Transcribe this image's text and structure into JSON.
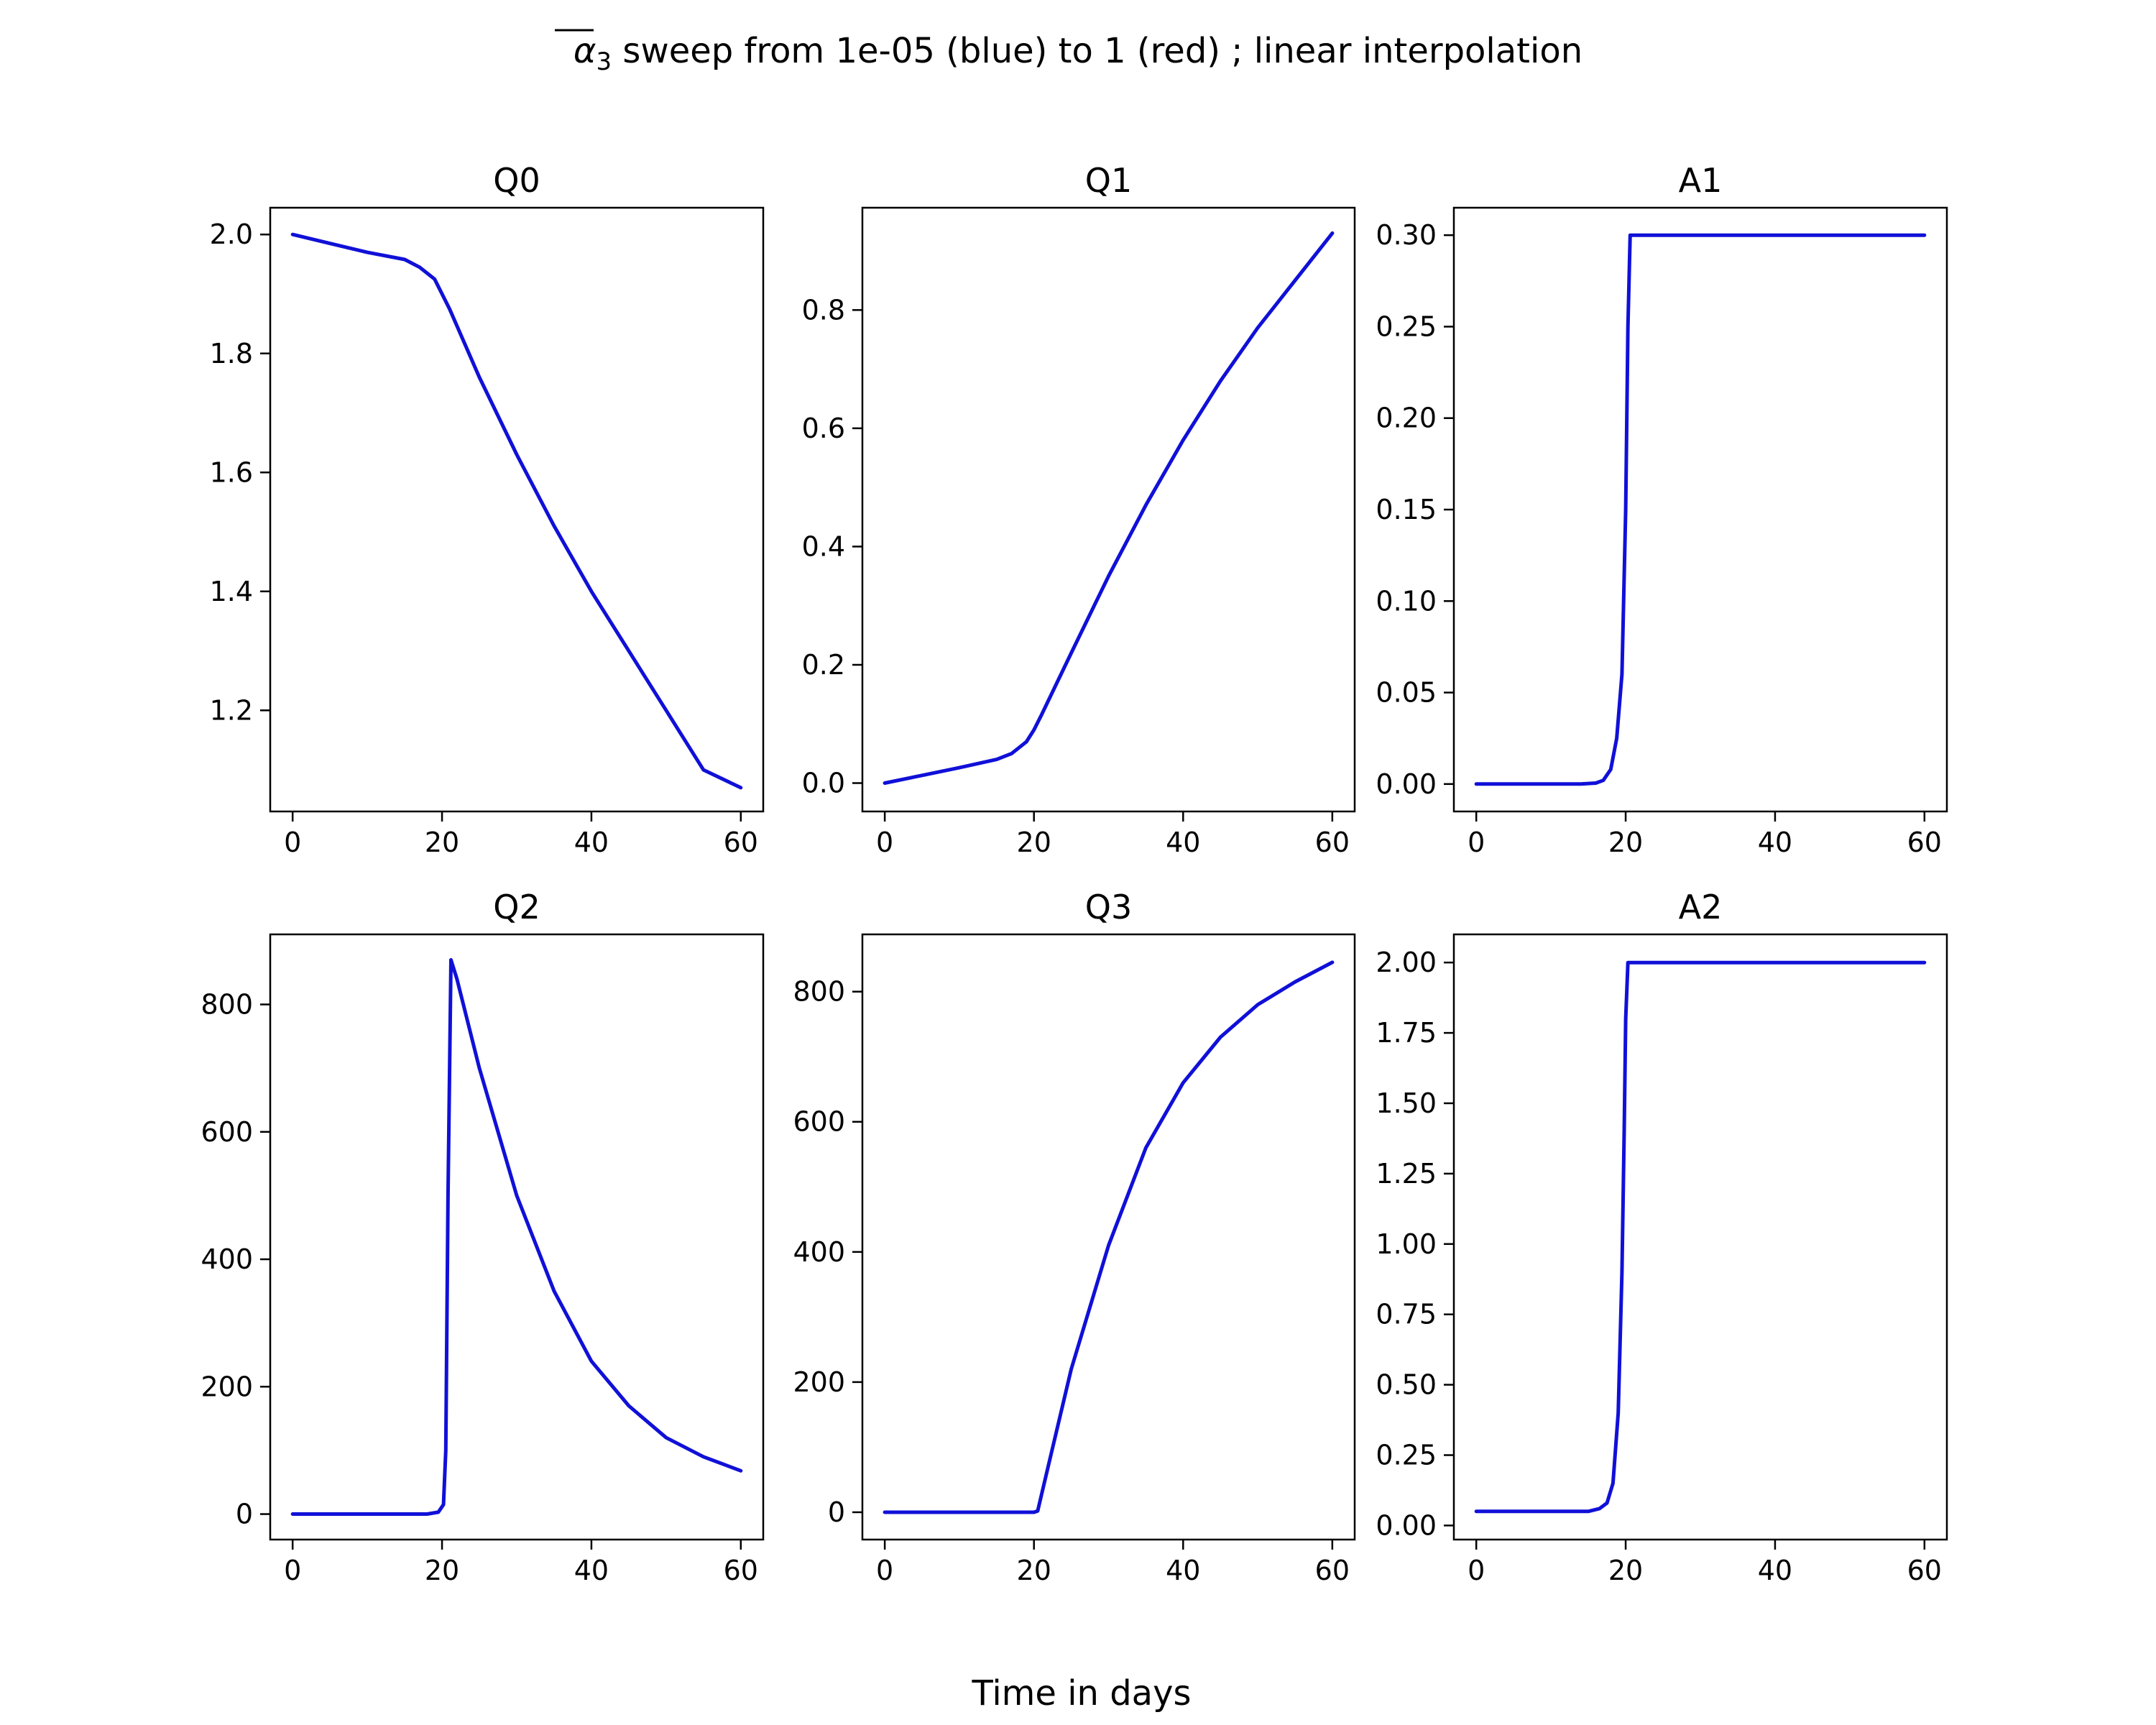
{
  "figure": {
    "suptitle_symbol": "α",
    "suptitle_subscript": "3",
    "suptitle_rest": " sweep from 1e-05 (blue) to 1 (red) ; linear interpolation",
    "xlabel": "Time in days"
  },
  "colors": {
    "line": "#1010d8",
    "axes": "#000000"
  },
  "chart_data": [
    {
      "type": "line",
      "title": "Q0",
      "xlim": [
        -3,
        63
      ],
      "ylim": [
        1.03,
        2.045
      ],
      "xticks": [
        0,
        20,
        40,
        60
      ],
      "yticks": [
        1.2,
        1.4,
        1.6,
        1.8,
        2.0
      ],
      "ytick_labels": [
        "1.2",
        "1.4",
        "1.6",
        "1.8",
        "2.0"
      ],
      "x": [
        0,
        5,
        10,
        15,
        17,
        19,
        20,
        21,
        25,
        30,
        35,
        40,
        45,
        50,
        55,
        60
      ],
      "y": [
        2.0,
        1.985,
        1.97,
        1.958,
        1.945,
        1.925,
        1.9,
        1.875,
        1.76,
        1.63,
        1.51,
        1.4,
        1.3,
        1.2,
        1.1,
        1.07
      ]
    },
    {
      "type": "line",
      "title": "Q1",
      "xlim": [
        -3,
        63
      ],
      "ylim": [
        -0.048,
        0.973
      ],
      "xticks": [
        0,
        20,
        40,
        60
      ],
      "yticks": [
        0.0,
        0.2,
        0.4,
        0.6,
        0.8
      ],
      "ytick_labels": [
        "0.0",
        "0.2",
        "0.4",
        "0.6",
        "0.8"
      ],
      "x": [
        0,
        5,
        10,
        15,
        17,
        19,
        20,
        21,
        25,
        30,
        35,
        40,
        45,
        50,
        55,
        60
      ],
      "y": [
        0.0,
        0.013,
        0.026,
        0.04,
        0.05,
        0.07,
        0.09,
        0.115,
        0.22,
        0.35,
        0.47,
        0.58,
        0.68,
        0.77,
        0.85,
        0.93
      ]
    },
    {
      "type": "line",
      "title": "A1",
      "xlim": [
        -3,
        63
      ],
      "ylim": [
        -0.015,
        0.315
      ],
      "xticks": [
        0,
        20,
        40,
        60
      ],
      "yticks": [
        0.0,
        0.05,
        0.1,
        0.15,
        0.2,
        0.25,
        0.3
      ],
      "ytick_labels": [
        "0.00",
        "0.05",
        "0.10",
        "0.15",
        "0.20",
        "0.25",
        "0.30"
      ],
      "x": [
        0,
        14,
        16,
        17,
        18,
        18.8,
        19.5,
        20,
        20.3,
        20.6,
        21,
        60
      ],
      "y": [
        0.0,
        0.0,
        0.0005,
        0.002,
        0.008,
        0.025,
        0.06,
        0.15,
        0.25,
        0.3,
        0.3,
        0.3
      ]
    },
    {
      "type": "line",
      "title": "Q2",
      "xlim": [
        -3,
        63
      ],
      "ylim": [
        -40,
        910
      ],
      "xticks": [
        0,
        20,
        40,
        60
      ],
      "yticks": [
        0,
        200,
        400,
        600,
        800
      ],
      "ytick_labels": [
        "0",
        "200",
        "400",
        "600",
        "800"
      ],
      "x": [
        0,
        18,
        19.5,
        20.2,
        20.5,
        20.8,
        21.2,
        22,
        25,
        28,
        30,
        35,
        40,
        45,
        50,
        55,
        60
      ],
      "y": [
        0,
        0,
        3,
        15,
        100,
        500,
        870,
        840,
        700,
        580,
        500,
        350,
        240,
        170,
        120,
        90,
        68
      ]
    },
    {
      "type": "line",
      "title": "Q3",
      "xlim": [
        -3,
        63
      ],
      "ylim": [
        -42,
        888
      ],
      "xticks": [
        0,
        20,
        40,
        60
      ],
      "yticks": [
        0,
        200,
        400,
        600,
        800
      ],
      "ytick_labels": [
        "0",
        "200",
        "400",
        "600",
        "800"
      ],
      "x": [
        0,
        20,
        20.5,
        22,
        25,
        30,
        35,
        40,
        45,
        50,
        55,
        60
      ],
      "y": [
        0,
        0,
        2,
        75,
        220,
        410,
        560,
        660,
        730,
        780,
        815,
        845
      ]
    },
    {
      "type": "line",
      "title": "A2",
      "xlim": [
        -3,
        63
      ],
      "ylim": [
        -0.05,
        2.1
      ],
      "xticks": [
        0,
        20,
        40,
        60
      ],
      "yticks": [
        0.0,
        0.25,
        0.5,
        0.75,
        1.0,
        1.25,
        1.5,
        1.75,
        2.0
      ],
      "ytick_labels": [
        "0.00",
        "0.25",
        "0.50",
        "0.75",
        "1.00",
        "1.25",
        "1.50",
        "1.75",
        "2.00"
      ],
      "x": [
        0,
        15,
        16.5,
        17.5,
        18.3,
        19,
        19.5,
        19.8,
        20,
        20.3,
        21,
        60
      ],
      "y": [
        0.05,
        0.05,
        0.06,
        0.08,
        0.15,
        0.4,
        0.9,
        1.4,
        1.8,
        2.0,
        2.0,
        2.0
      ]
    }
  ]
}
